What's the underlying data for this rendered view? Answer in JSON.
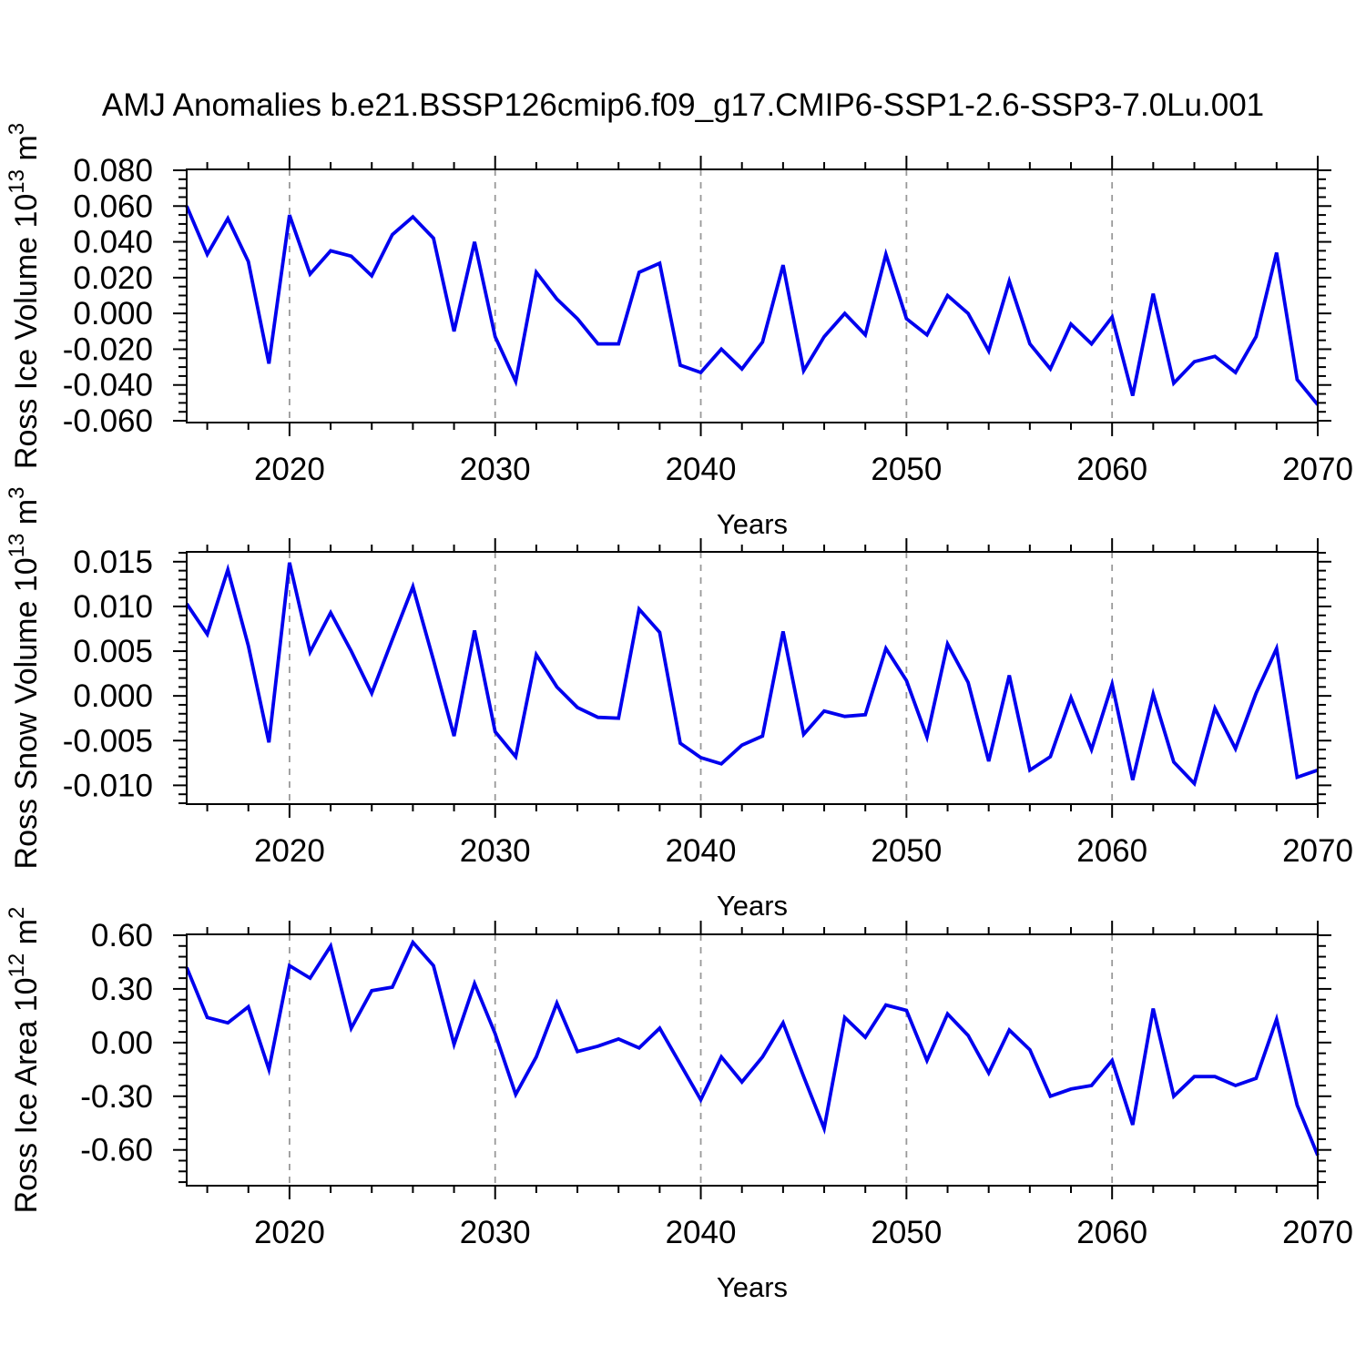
{
  "title": "AMJ Anomalies b.e21.BSSP126cmip6.f09_g17.CMIP6-SSP1-2.6-SSP3-7.0Lu.001",
  "colors": {
    "line": "#0000EE",
    "grid": "#999999",
    "frame": "#000000",
    "background": "#FFFFFF"
  },
  "x_axis": {
    "label": "Years",
    "start": 2015,
    "end": 2070,
    "major_ticks": [
      2020,
      2030,
      2040,
      2050,
      2060,
      2070
    ],
    "major_tick_labels": [
      "2020",
      "2030",
      "2040",
      "2050",
      "2060",
      "2070"
    ],
    "minor_step": 2,
    "gridline_years": [
      2020,
      2030,
      2040,
      2050,
      2060
    ]
  },
  "years": [
    2015,
    2016,
    2017,
    2018,
    2019,
    2020,
    2021,
    2022,
    2023,
    2024,
    2025,
    2026,
    2027,
    2028,
    2029,
    2030,
    2031,
    2032,
    2033,
    2034,
    2035,
    2036,
    2037,
    2038,
    2039,
    2040,
    2041,
    2042,
    2043,
    2044,
    2045,
    2046,
    2047,
    2048,
    2049,
    2050,
    2051,
    2052,
    2053,
    2054,
    2055,
    2056,
    2057,
    2058,
    2059,
    2060,
    2061,
    2062,
    2063,
    2064,
    2065,
    2066,
    2067,
    2068,
    2069,
    2070
  ],
  "chart_data": [
    {
      "type": "line",
      "name": "panel-ross-ice-volume",
      "ylabel_plain": "Ross Ice Volume 10^13 m^3",
      "ylabel_segments": [
        "Ross Ice Volume 10",
        "13",
        " m",
        "3"
      ],
      "xlabel": "Years",
      "legend": "none",
      "grid": "vertical-dashed-decades",
      "frame_ymax": 0.0805,
      "frame_ymin": -0.061,
      "ytick_values": [
        0.08,
        0.06,
        0.04,
        0.02,
        0.0,
        -0.02,
        -0.04,
        -0.06
      ],
      "ytick_labels": [
        "0.080",
        "0.060",
        "0.040",
        "0.020",
        "0.000",
        "-0.020",
        "-0.040",
        "-0.060"
      ],
      "ytick_minor_step": 0.005,
      "values": [
        0.06,
        0.033,
        0.053,
        0.029,
        -0.028,
        0.055,
        0.022,
        0.035,
        0.032,
        0.021,
        0.044,
        0.054,
        0.042,
        -0.01,
        0.04,
        -0.013,
        -0.038,
        0.023,
        0.008,
        -0.003,
        -0.017,
        -0.017,
        0.023,
        0.028,
        -0.029,
        -0.033,
        -0.02,
        -0.031,
        -0.016,
        0.027,
        -0.032,
        -0.013,
        0.0,
        -0.012,
        0.033,
        -0.003,
        -0.012,
        0.01,
        0.0,
        -0.021,
        0.018,
        -0.017,
        -0.031,
        -0.006,
        -0.017,
        -0.002,
        -0.046,
        0.011,
        -0.039,
        -0.027,
        -0.024,
        -0.033,
        -0.013,
        0.034,
        -0.037,
        -0.051
      ]
    },
    {
      "type": "line",
      "name": "panel-ross-snow-volume",
      "ylabel_plain": "Ross Snow Volume 10^13 m^3",
      "ylabel_segments": [
        "Ross Snow Volume 10",
        "13",
        " m",
        "3"
      ],
      "xlabel": "Years",
      "legend": "none",
      "grid": "vertical-dashed-decades",
      "frame_ymax": 0.0161,
      "frame_ymin": -0.0121,
      "ytick_values": [
        0.015,
        0.01,
        0.005,
        0.0,
        -0.005,
        -0.01
      ],
      "ytick_labels": [
        "0.015",
        "0.010",
        "0.005",
        "0.000",
        "-0.005",
        "-0.010"
      ],
      "ytick_minor_step": 0.001,
      "values": [
        0.0103,
        0.0069,
        0.0141,
        0.0056,
        -0.0052,
        0.0149,
        0.0049,
        0.0093,
        0.005,
        0.0003,
        0.0063,
        0.0122,
        0.004,
        -0.0045,
        0.0073,
        -0.004,
        -0.0068,
        0.0046,
        0.001,
        -0.0013,
        -0.0024,
        -0.0025,
        0.0097,
        0.0071,
        -0.0053,
        -0.0069,
        -0.0076,
        -0.0055,
        -0.0045,
        0.0072,
        -0.0043,
        -0.0017,
        -0.0023,
        -0.0021,
        0.0053,
        0.0017,
        -0.0046,
        0.0058,
        0.0015,
        -0.0073,
        0.0023,
        -0.0083,
        -0.0068,
        -0.0002,
        -0.006,
        0.0013,
        -0.0094,
        0.0002,
        -0.0074,
        -0.0098,
        -0.0014,
        -0.0059,
        0.0003,
        0.0053,
        -0.0091,
        -0.0083
      ]
    },
    {
      "type": "line",
      "name": "panel-ross-ice-area",
      "ylabel_plain": "Ross Ice Area 10^12 m^2",
      "ylabel_segments": [
        "Ross Ice Area 10",
        "12",
        " m",
        "2"
      ],
      "xlabel": "Years",
      "legend": "none",
      "grid": "vertical-dashed-decades",
      "frame_ymax": 0.605,
      "frame_ymin": -0.8,
      "ytick_values": [
        0.6,
        0.3,
        0.0,
        -0.3,
        -0.6
      ],
      "ytick_labels": [
        "0.60",
        "0.30",
        "0.00",
        "-0.30",
        "-0.60"
      ],
      "ytick_minor_step": 0.06,
      "values": [
        0.42,
        0.14,
        0.11,
        0.2,
        -0.15,
        0.43,
        0.36,
        0.54,
        0.08,
        0.29,
        0.31,
        0.56,
        0.43,
        -0.01,
        0.33,
        0.05,
        -0.29,
        -0.08,
        0.22,
        -0.05,
        -0.02,
        0.02,
        -0.03,
        0.08,
        -0.12,
        -0.32,
        -0.08,
        -0.22,
        -0.08,
        0.11,
        -0.19,
        -0.48,
        0.14,
        0.03,
        0.21,
        0.18,
        -0.1,
        0.16,
        0.04,
        -0.17,
        0.07,
        -0.04,
        -0.3,
        -0.26,
        -0.24,
        -0.1,
        -0.46,
        0.19,
        -0.3,
        -0.19,
        -0.19,
        -0.24,
        -0.2,
        0.13,
        -0.35,
        -0.63
      ]
    }
  ]
}
